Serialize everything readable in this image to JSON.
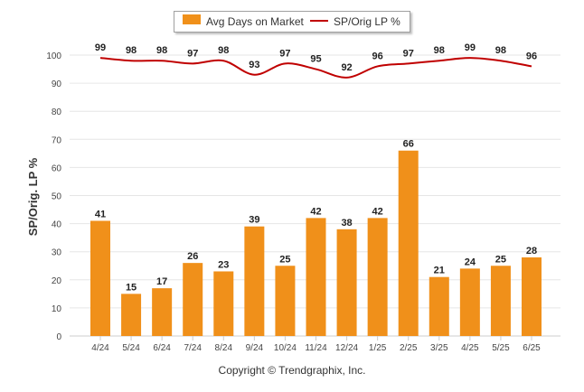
{
  "legend": {
    "bar_label": "Avg Days on Market",
    "line_label": "SP/Orig LP %"
  },
  "credit": "Copyright © Trendgraphix, Inc.",
  "chart_data": {
    "type": "bar",
    "categories": [
      "4/24",
      "5/24",
      "6/24",
      "7/24",
      "8/24",
      "9/24",
      "10/24",
      "11/24",
      "12/24",
      "1/25",
      "2/25",
      "3/25",
      "4/25",
      "5/25",
      "6/25"
    ],
    "series": [
      {
        "name": "Avg Days on Market",
        "type": "bar",
        "color": "#f0901a",
        "values": [
          41,
          15,
          17,
          26,
          23,
          39,
          25,
          42,
          38,
          42,
          66,
          21,
          24,
          25,
          28
        ]
      },
      {
        "name": "SP/Orig LP %",
        "type": "line",
        "color": "#c00000",
        "values": [
          99,
          98,
          98,
          97,
          98,
          93,
          97,
          95,
          92,
          96,
          97,
          98,
          99,
          98,
          96
        ]
      }
    ],
    "ylabel": "SP/Orig. LP %",
    "xlabel": "",
    "ylim": [
      0,
      100
    ],
    "yticks": [
      0,
      10,
      20,
      30,
      40,
      50,
      60,
      70,
      80,
      90,
      100
    ],
    "grid": true,
    "legend_position": "top-center"
  }
}
